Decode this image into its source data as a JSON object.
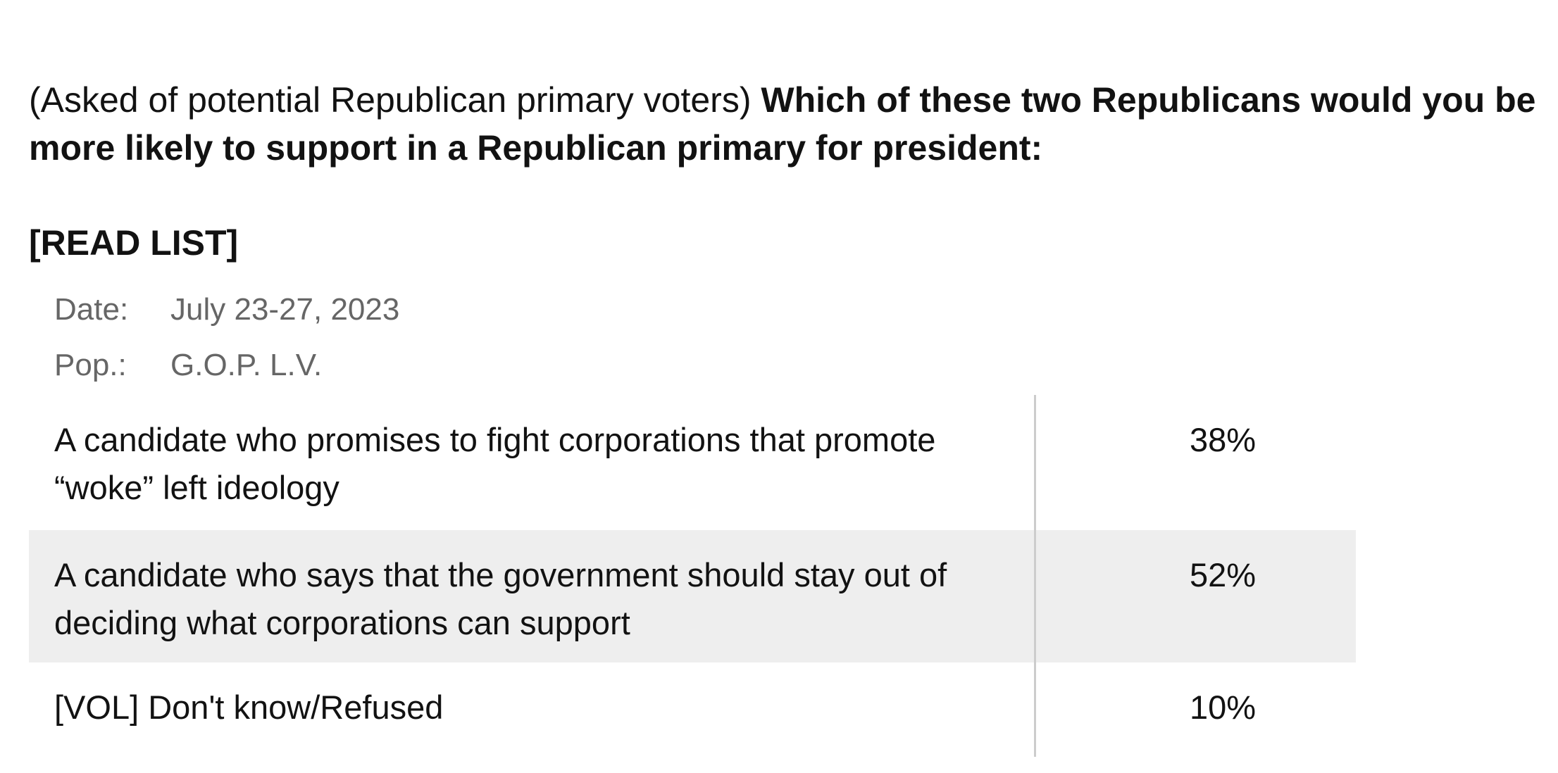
{
  "question": {
    "prefix": "(Asked of potential Republican primary voters)",
    "text": "Which of these two Republicans would you be more likely to support in a Republican primary for president:"
  },
  "instruction": "[READ LIST]",
  "meta": {
    "date_label": "Date:",
    "date_value": "July 23-27, 2023",
    "pop_label": "Pop.:",
    "pop_value": "G.O.P. L.V."
  },
  "results": [
    {
      "answer": "A candidate who promises to fight corporations that promote “woke” left ideology",
      "percent": "38%"
    },
    {
      "answer": "A candidate who says that the government should stay out of deciding what corporations can support",
      "percent": "52%"
    },
    {
      "answer": "[VOL] Don't know/Refused",
      "percent": "10%"
    }
  ],
  "colors": {
    "text": "#121212",
    "meta_text": "#666666",
    "row_shade": "#eeeeee",
    "divider": "#cccccc"
  }
}
